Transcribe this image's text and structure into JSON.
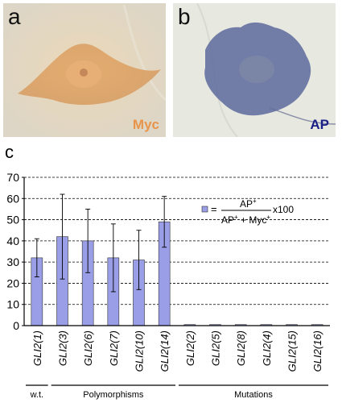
{
  "panels": {
    "a": {
      "letter": "a",
      "stain": "Myc",
      "stain_color": "#e8944a"
    },
    "b": {
      "letter": "b",
      "stain": "AP",
      "stain_color": "#1a1f86"
    },
    "c": {
      "letter": "c"
    }
  },
  "legend": {
    "numerator": "AP",
    "denominator_left": "AP",
    "denominator_right": " + Myc",
    "superscript": "+",
    "suffix": "x100",
    "prefix": "="
  },
  "groups": [
    {
      "label": "w.t.",
      "from": 0,
      "to": 0
    },
    {
      "label": "Polymorphisms",
      "from": 1,
      "to": 5
    },
    {
      "label": "Mutations",
      "from": 6,
      "to": 11
    }
  ],
  "chart_data": {
    "type": "bar",
    "categories": [
      "GLI2(1)",
      "GLI2(3)",
      "GLI2(6)",
      "GLI2(7)",
      "GLI2(10)",
      "GLI2(14)",
      "GLI2(2)",
      "GLI2(5)",
      "GLI2(8)",
      "GLI2(4)",
      "GLI2(15)",
      "GLI2(16)"
    ],
    "values": [
      32,
      42,
      40,
      32,
      31,
      49,
      0.5,
      0.5,
      0.5,
      0.5,
      0.5,
      0.5
    ],
    "errors": [
      9,
      20,
      15,
      16,
      14,
      12,
      0,
      0,
      0,
      0,
      0,
      0
    ],
    "ylim": [
      0,
      70
    ],
    "yticks": [
      0,
      10,
      20,
      30,
      40,
      50,
      60,
      70
    ],
    "grid": "dashed horizontal",
    "bar_color": "#9a9ee6",
    "legend_position": "top-right"
  }
}
